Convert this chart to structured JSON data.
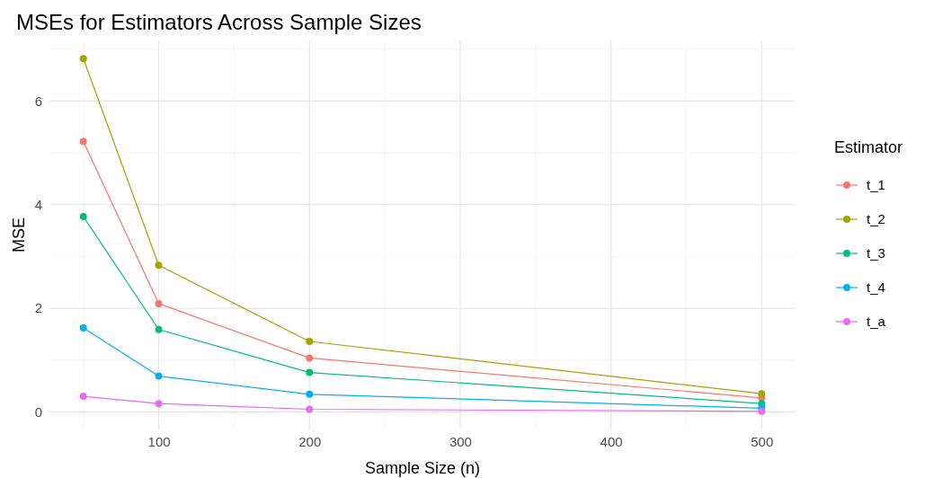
{
  "chart_data": {
    "type": "line",
    "title": "MSEs for Estimators Across Sample Sizes",
    "xlabel": "Sample Size (n)",
    "ylabel": "MSE",
    "legend_title": "Estimator",
    "x": [
      50,
      100,
      200,
      500
    ],
    "series": [
      {
        "name": "t_1",
        "color": "#f8766d",
        "values": [
          5.22,
          2.09,
          1.04,
          0.27
        ]
      },
      {
        "name": "t_2",
        "color": "#a3a500",
        "values": [
          6.82,
          2.83,
          1.36,
          0.35
        ]
      },
      {
        "name": "t_3",
        "color": "#00bf7d",
        "values": [
          3.77,
          1.59,
          0.76,
          0.16
        ]
      },
      {
        "name": "t_4",
        "color": "#00b0f6",
        "values": [
          1.62,
          0.69,
          0.34,
          0.07
        ]
      },
      {
        "name": "t_a",
        "color": "#e76bf3",
        "values": [
          0.3,
          0.16,
          0.05,
          0.01
        ]
      }
    ],
    "xlim": [
      27.5,
      522.5
    ],
    "ylim": [
      -0.34,
      7.17
    ],
    "xticks": [
      100,
      200,
      300,
      400,
      500
    ],
    "yticks": [
      0,
      2,
      4,
      6
    ],
    "grid": true,
    "legend": "right",
    "marker": "circle",
    "line_style": "solid"
  }
}
